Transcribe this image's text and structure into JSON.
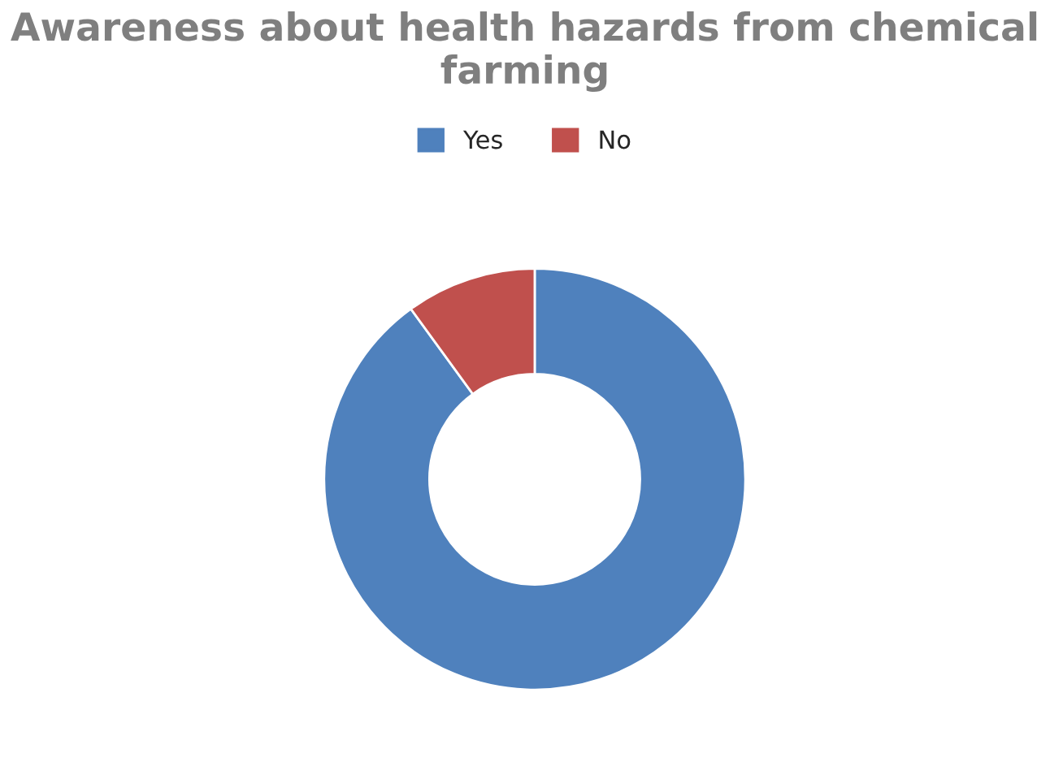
{
  "chart_data": {
    "type": "donut",
    "title": "Awareness about health hazards from chemical farming",
    "categories": [
      "Yes",
      "No"
    ],
    "values": [
      90,
      10
    ],
    "colors": [
      "#4f81bd",
      "#c0504d"
    ],
    "legend": "top"
  }
}
